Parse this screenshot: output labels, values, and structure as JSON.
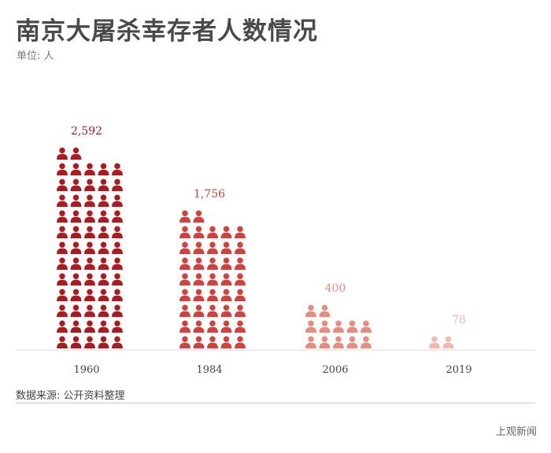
{
  "title": "南京大屠杀幸存者人数情况",
  "unit": "单位: 人",
  "source": "数据来源: 公开资料整理",
  "brand": "上观新闻",
  "chart_data": {
    "type": "bar",
    "style": "isotype-pictogram",
    "title": "南京大屠杀幸存者人数情况",
    "ylabel": "单位: 人",
    "categories": [
      "1960",
      "1984",
      "2006",
      "2019"
    ],
    "values": [
      2592,
      1756,
      400,
      78
    ],
    "value_labels": [
      "2,592",
      "1,756",
      "400",
      "78"
    ],
    "icon": "person-icon",
    "colors": [
      "#b3191c",
      "#d93f3a",
      "#ee8a7c",
      "#f4b9ac"
    ],
    "icon_counts": [
      62,
      42,
      12,
      2
    ],
    "legend": "none",
    "grid": false
  }
}
